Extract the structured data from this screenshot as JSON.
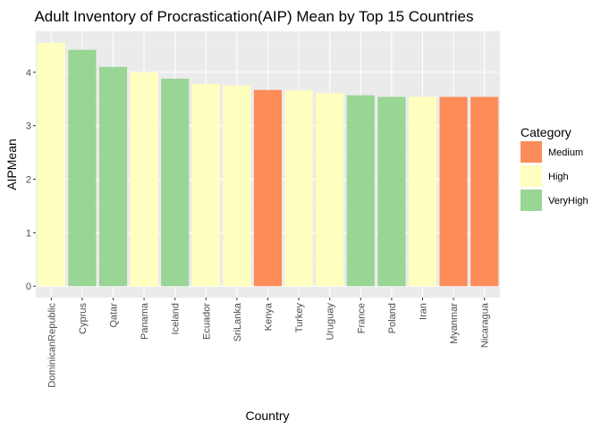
{
  "chart_data": {
    "type": "bar",
    "title": "Adult Inventory of Procrastication(AIP) Mean by Top 15 Countries",
    "xlabel": "Country",
    "ylabel": "AIPMean",
    "ylim": [
      0,
      4.7
    ],
    "yticks": [
      0,
      1,
      2,
      3,
      4
    ],
    "grid": true,
    "legend": {
      "title": "Category",
      "placement": "right",
      "entries": [
        {
          "name": "Medium",
          "color": "#fc8d59"
        },
        {
          "name": "High",
          "color": "#ffffbf"
        },
        {
          "name": "VeryHigh",
          "color": "#99d594"
        }
      ]
    },
    "categories": [
      "DominicanRepublic",
      "Cyprus",
      "Qatar",
      "Panama",
      "Iceland",
      "Ecuador",
      "SriLanka",
      "Kenya",
      "Turkey",
      "Uruguay",
      "France",
      "Poland",
      "Iran",
      "Myanmar",
      "Nicaragua"
    ],
    "values": [
      4.55,
      4.42,
      4.1,
      4.0,
      3.88,
      3.78,
      3.75,
      3.67,
      3.66,
      3.61,
      3.57,
      3.54,
      3.54,
      3.54,
      3.54
    ],
    "category_group": [
      "High",
      "VeryHigh",
      "VeryHigh",
      "High",
      "VeryHigh",
      "High",
      "High",
      "Medium",
      "High",
      "High",
      "VeryHigh",
      "VeryHigh",
      "High",
      "Medium",
      "Medium"
    ]
  }
}
